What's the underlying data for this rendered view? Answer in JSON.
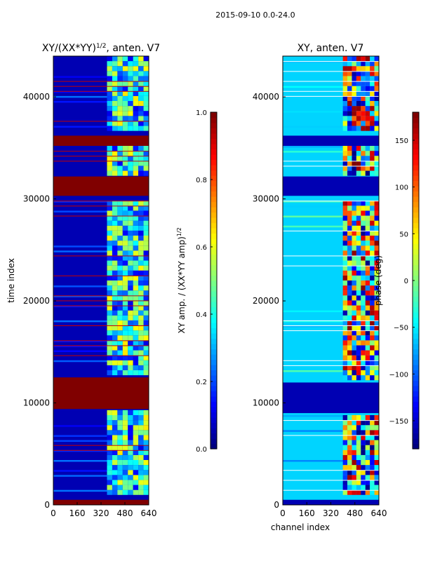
{
  "figure": {
    "suptitle": "2015-09-10 0.0-24.0"
  },
  "chart_data": [
    {
      "type": "heatmap",
      "title": "XY/(XX*YY)",
      "title_exponent": "1/2",
      "title_suffix": ", anten. V7",
      "xlabel": "",
      "ylabel": "time index",
      "xlim": [
        0,
        640
      ],
      "ylim": [
        0,
        44000
      ],
      "xticks": [
        0,
        160,
        320,
        480,
        640
      ],
      "yticks": [
        0,
        10000,
        20000,
        30000,
        40000
      ],
      "colorbar": {
        "label": "XY amp. / (XX*YY amp)",
        "label_exponent": "1/2",
        "range": [
          0.0,
          1.0
        ],
        "ticks": [
          "0.0",
          "0.2",
          "0.4",
          "0.6",
          "0.8",
          "1.0"
        ],
        "colormap": "jet"
      },
      "flagged_time_ranges": [
        [
          0,
          500
        ],
        [
          9400,
          12500
        ],
        [
          30300,
          32200
        ],
        [
          35200,
          36200
        ]
      ],
      "baseline_level": 0.05,
      "signal_channel_range": [
        360,
        640
      ]
    },
    {
      "type": "heatmap",
      "title": "XY, anten. V7",
      "xlabel": "channel index",
      "ylabel": "",
      "xlim": [
        0,
        640
      ],
      "ylim": [
        0,
        44000
      ],
      "xticks": [
        0,
        160,
        320,
        480,
        640
      ],
      "yticks": [
        0,
        10000,
        20000,
        30000,
        40000
      ],
      "colorbar": {
        "label": "phase (deg)",
        "range": [
          -180,
          180
        ],
        "ticks": [
          "-150",
          "-100",
          "-50",
          "0",
          "50",
          "100",
          "150"
        ],
        "colormap": "jet"
      },
      "flagged_time_ranges": [
        [
          0,
          500
        ],
        [
          9000,
          12000
        ],
        [
          30300,
          32200
        ],
        [
          35200,
          36200
        ]
      ],
      "baseline_level": -60,
      "signal_channel_range": [
        400,
        640
      ]
    }
  ]
}
